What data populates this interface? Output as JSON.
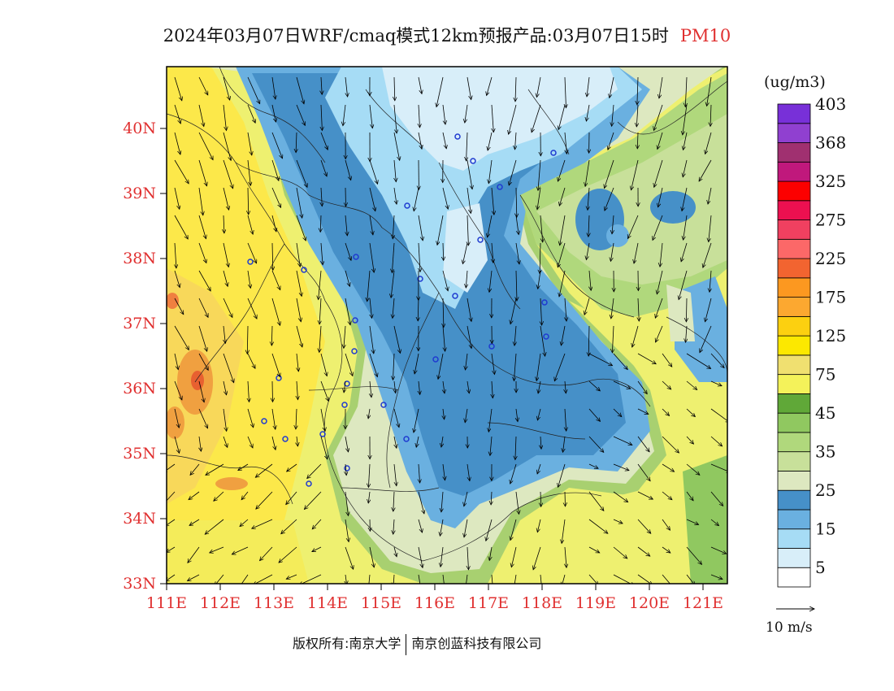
{
  "title": {
    "main": "2024年03月07日WRF/cmaq模式12km预报产品:03月07日15时",
    "species": "PM10",
    "species_color": "#e03030"
  },
  "map": {
    "lon_labels": [
      "111E",
      "112E",
      "113E",
      "114E",
      "115E",
      "116E",
      "117E",
      "118E",
      "119E",
      "120E",
      "121E"
    ],
    "lat_labels": [
      "33N",
      "34N",
      "35N",
      "36N",
      "37N",
      "38N",
      "39N",
      "40N"
    ],
    "axis_label_color": "#e03030"
  },
  "legend": {
    "unit": "(ug/m3)",
    "colors": [
      "#ffffff",
      "#d8eef9",
      "#a6dcf5",
      "#6ab0e0",
      "#4690c8",
      "#dde8c0",
      "#c8e09a",
      "#b0d87c",
      "#90c860",
      "#60a838",
      "#f4f25a",
      "#f0e070",
      "#fce800",
      "#fcd010",
      "#fca830",
      "#fc9820",
      "#f26430",
      "#fc6868",
      "#f04060",
      "#ec1050",
      "#fc0000",
      "#c0187c",
      "#a03070",
      "#9040d0",
      "#7830d8"
    ],
    "labels": [
      "5",
      "15",
      "25",
      "35",
      "45",
      "75",
      "125",
      "175",
      "225",
      "275",
      "325",
      "368",
      "403"
    ]
  },
  "wind_reference": {
    "label": "10 m/s"
  },
  "credit": {
    "left": "版权所有:南京大学",
    "right": "南京创蓝科技有限公司"
  }
}
